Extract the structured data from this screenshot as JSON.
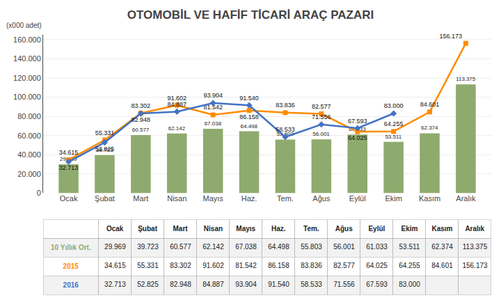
{
  "chart_data": {
    "type": "bar",
    "title": "OTOMOBİL VE HAFİF TİCARİ ARAÇ PAZARI",
    "ylabel": "(x000 adet)",
    "categories": [
      "Ocak",
      "Şubat",
      "Mart",
      "Nisan",
      "Mayıs",
      "Haz.",
      "Tem.",
      "Ağus",
      "Eylül",
      "Ekim",
      "Kasım",
      "Aralık"
    ],
    "series": [
      {
        "name": "10 Yıllık Ort.",
        "type": "bar",
        "color": "#8faa6e",
        "values": [
          29969,
          39723,
          60577,
          62142,
          67038,
          64498,
          55803,
          56001,
          61033,
          53511,
          62374,
          113375
        ],
        "value_labels": [
          "29.969",
          "39.723",
          "60.577",
          "62.142",
          "67.038",
          "64.498",
          "55.803",
          "56.001",
          "61.033",
          "53.511",
          "62.374",
          "113.375"
        ]
      },
      {
        "name": "2015",
        "type": "line",
        "color": "#ff8c00",
        "marker": "square",
        "values": [
          34615,
          55331,
          83302,
          91602,
          81542,
          86158,
          83836,
          82577,
          64025,
          64255,
          84601,
          156173
        ],
        "value_labels": [
          "34.615",
          "55.331",
          "83.302",
          "91.602",
          "81.542",
          "86.158",
          "83.836",
          "82.577",
          "64.025",
          "64.255",
          "84.601",
          "156.173"
        ]
      },
      {
        "name": "2016",
        "type": "line",
        "color": "#4472c4",
        "marker": "diamond",
        "values": [
          32713,
          52825,
          82948,
          84887,
          93904,
          91540,
          58533,
          71556,
          67593,
          83000,
          null,
          null
        ],
        "value_labels": [
          "32.713",
          "52.825",
          "82.948",
          "84.887",
          "93.904",
          "91.540",
          "58.533",
          "71.556",
          "67.593",
          "83.000",
          null,
          null
        ]
      }
    ],
    "ylim": [
      0,
      165000
    ],
    "yticks": [
      0,
      {
        "value": 20000,
        "label": "20.000"
      },
      {
        "value": 40000,
        "label": "40.000"
      },
      {
        "value": 60000,
        "label": "60.000"
      },
      {
        "value": 80000,
        "label": "80.000"
      },
      {
        "value": 100000,
        "label": "100.000"
      },
      {
        "value": 120000,
        "label": "120.000"
      },
      {
        "value": 140000,
        "label": "140.000"
      },
      {
        "value": 160000,
        "label": "160.000"
      }
    ],
    "grid": true,
    "data_labels": true
  }
}
